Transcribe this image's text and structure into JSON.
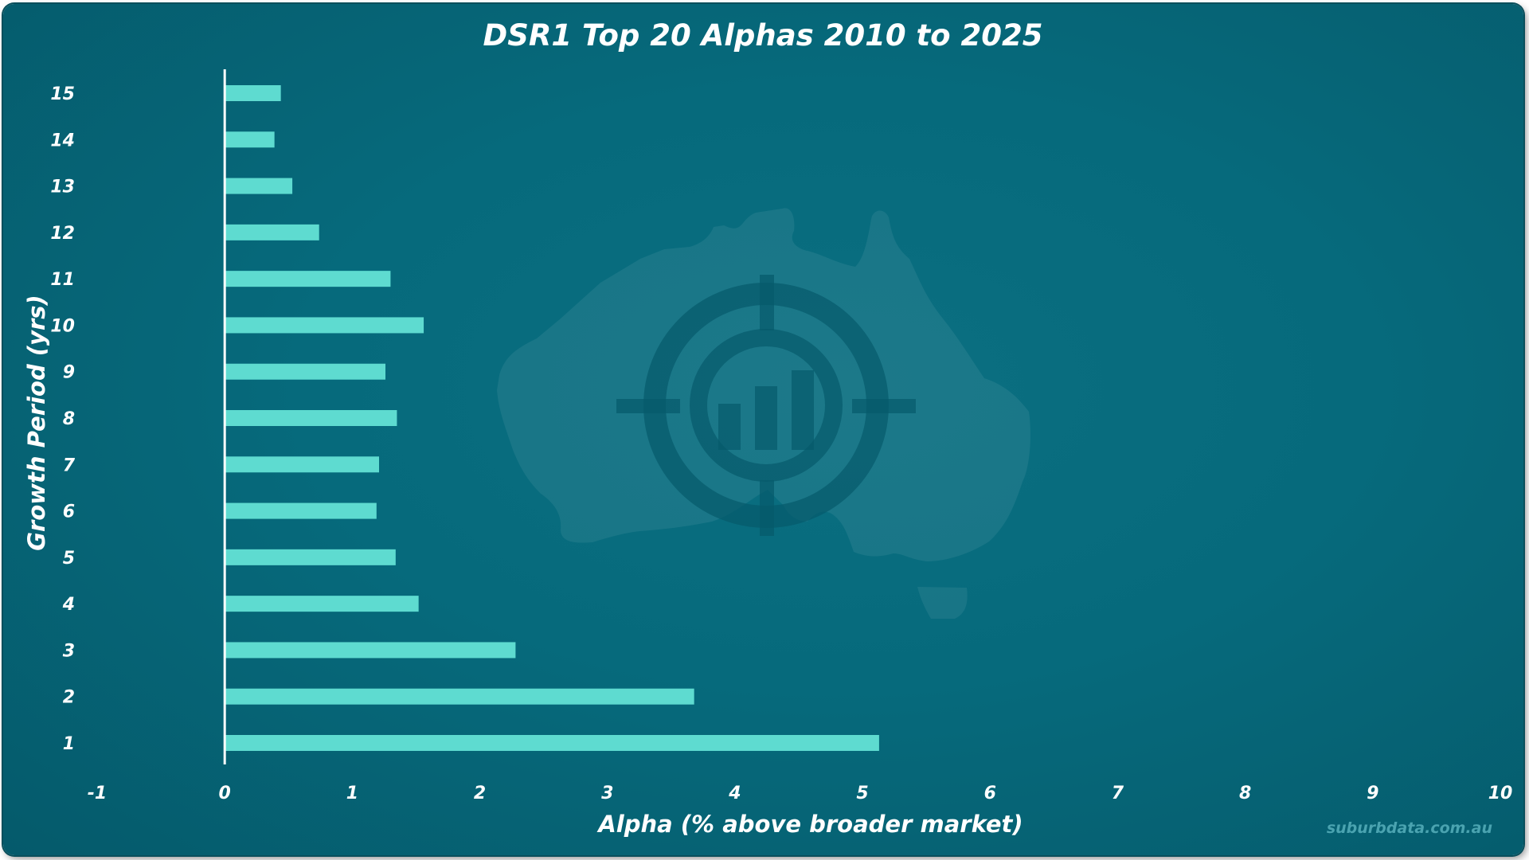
{
  "chart_data": {
    "type": "bar",
    "orientation": "horizontal",
    "title": "DSR1 Top 20 Alphas 2010 to 2025",
    "xlabel": "Alpha (% above broader market)",
    "ylabel": "Growth Period (yrs)",
    "xlim": [
      -1,
      10
    ],
    "xticks": [
      "-1",
      "0",
      "1",
      "2",
      "3",
      "4",
      "5",
      "6",
      "7",
      "8",
      "9",
      "10"
    ],
    "categories": [
      "1",
      "2",
      "3",
      "4",
      "5",
      "6",
      "7",
      "8",
      "9",
      "10",
      "11",
      "12",
      "13",
      "14",
      "15"
    ],
    "values": [
      5.13,
      3.68,
      2.28,
      1.52,
      1.34,
      1.19,
      1.21,
      1.35,
      1.26,
      1.56,
      1.3,
      0.74,
      0.53,
      0.39,
      0.44
    ],
    "grid": false,
    "legend": "none",
    "bar_color": "#5edbd0",
    "background_color": "#066a7c"
  },
  "watermark": {
    "icon": "australia-map-target-icon",
    "credit": "suburbdata.com.au"
  }
}
